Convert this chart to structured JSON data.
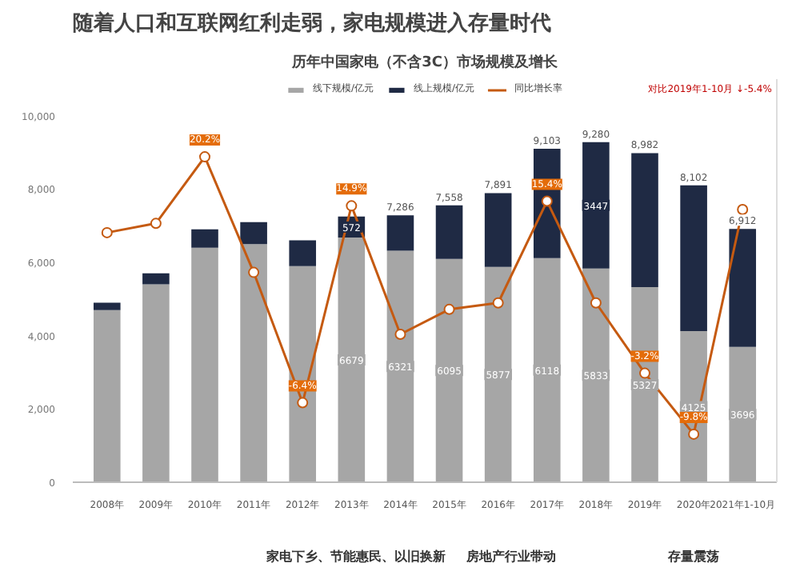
{
  "chart_data": {
    "type": "bar",
    "stacked": true,
    "title": "随着人口和互联网红利走弱，家电规模进入存量时代",
    "subtitle": "历年中国家电（不含3C）市场规模及增长",
    "categories": [
      "2008年",
      "2009年",
      "2010年",
      "2011年",
      "2012年",
      "2013年",
      "2014年",
      "2015年",
      "2016年",
      "2017年",
      "2018年",
      "2019年",
      "2020年",
      "2021年1-10月"
    ],
    "series": [
      {
        "name": "线下规模/亿元",
        "color": "#a6a6a6",
        "values": [
          4700,
          5400,
          6400,
          6500,
          5900,
          6679,
          6321,
          6095,
          5877,
          6118,
          5833,
          5327,
          4125,
          3696
        ],
        "value_labels": [
          null,
          null,
          null,
          null,
          null,
          "6679",
          "6321",
          "6095",
          "5877",
          "6118",
          "5833",
          "5327",
          "4125",
          "3696"
        ]
      },
      {
        "name": "线上规模/亿元",
        "color": "#1f2a44",
        "values": [
          200,
          300,
          500,
          600,
          700,
          572,
          965,
          1463,
          2014,
          2985,
          3447,
          3655,
          3977,
          3216
        ],
        "value_labels": [
          null,
          null,
          null,
          null,
          null,
          "572",
          null,
          null,
          null,
          null,
          "3447",
          null,
          null,
          null
        ]
      },
      {
        "name": "同比增长率",
        "type": "line",
        "axis": "y2",
        "color": "#c55a11",
        "marker": "circle",
        "values": [
          12,
          13,
          20.2,
          7.7,
          -6.4,
          14.9,
          1,
          3.7,
          4.4,
          15.4,
          4.4,
          -3.2,
          -9.8,
          14.5
        ],
        "value_labels": [
          null,
          null,
          "20.2%",
          null,
          "-6.4%",
          "14.9%",
          null,
          null,
          null,
          "15.4%",
          null,
          "-3.2%",
          "-9.8%",
          null
        ]
      }
    ],
    "totals": [
      null,
      null,
      null,
      null,
      null,
      null,
      "7,286",
      "7,558",
      "7,891",
      "9,103",
      "9,280",
      "8,982",
      "8,102",
      "6,912"
    ],
    "ylim": [
      0,
      11000
    ],
    "yticks": [
      {
        "value": 0,
        "label": "0"
      },
      {
        "value": 2000,
        "label": "2,000"
      },
      {
        "value": 4000,
        "label": "4,000"
      },
      {
        "value": 6000,
        "label": "6,000"
      },
      {
        "value": 8000,
        "label": "8,000"
      },
      {
        "value": 10000,
        "label": "10,000"
      }
    ],
    "y2lim": [
      -15,
      28.6
    ],
    "tick_labels": "xy",
    "legend": "top",
    "grid": false,
    "annotations": [
      "对比2019年1-10月 ↓-5.4%",
      "家电下乡、节能惠民、以旧换新",
      "房地产行业带动",
      "存量震荡"
    ]
  }
}
